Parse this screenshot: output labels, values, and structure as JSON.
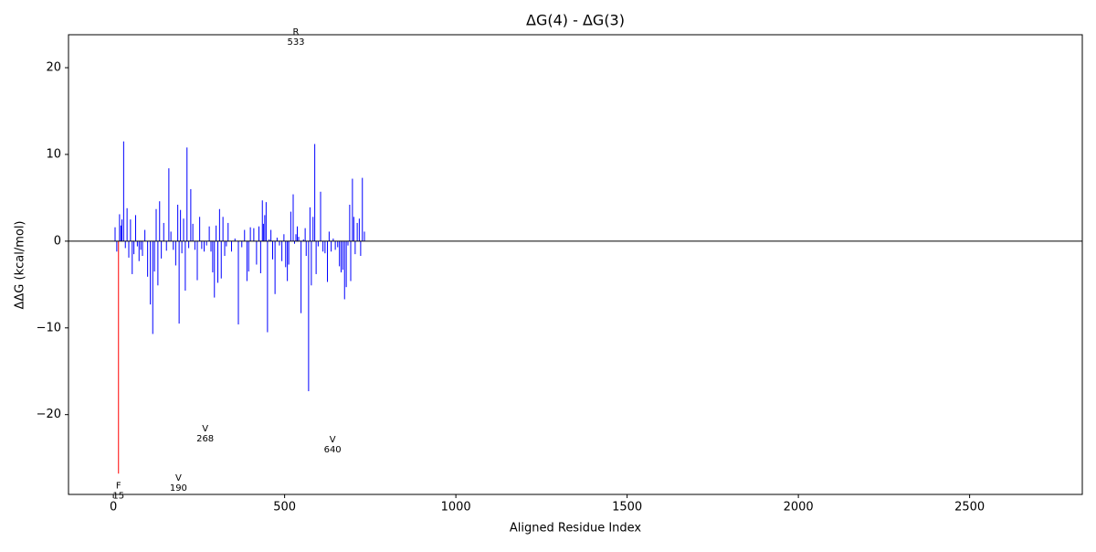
{
  "chart_data": {
    "type": "bar",
    "title": "ΔG(4) - ΔG(3)",
    "x_label": "Aligned Residue Index",
    "y_label": "ΔΔG (kcal/mol)",
    "color": "#0000ff",
    "zero_line": true,
    "x": [
      5,
      10,
      18,
      22,
      25,
      30,
      35,
      40,
      45,
      50,
      55,
      60,
      65,
      70,
      75,
      80,
      85,
      92,
      100,
      108,
      115,
      120,
      125,
      130,
      135,
      140,
      147,
      155,
      162,
      168,
      175,
      182,
      188,
      192,
      196,
      200,
      205,
      210,
      215,
      220,
      226,
      232,
      238,
      245,
      252,
      258,
      265,
      272,
      280,
      285,
      290,
      295,
      300,
      305,
      310,
      315,
      320,
      325,
      330,
      335,
      345,
      355,
      365,
      375,
      383,
      390,
      395,
      400,
      410,
      418,
      425,
      430,
      435,
      438,
      442,
      446,
      450,
      455,
      460,
      465,
      472,
      478,
      485,
      492,
      498,
      503,
      508,
      512,
      518,
      525,
      529,
      533,
      537,
      541,
      548,
      555,
      560,
      563,
      570,
      574,
      578,
      583,
      588,
      592,
      598,
      605,
      612,
      618,
      625,
      630,
      636,
      642,
      648,
      655,
      660,
      665,
      670,
      675,
      680,
      685,
      690,
      693,
      698,
      702,
      706,
      712,
      718,
      722,
      727,
      733
    ],
    "values": [
      1.6,
      -1.2,
      3.1,
      1.8,
      2.5,
      11.5,
      -0.8,
      3.8,
      -1.9,
      2.5,
      -3.8,
      -1.5,
      3.0,
      -0.6,
      -2.3,
      -1.0,
      -1.7,
      1.3,
      -4.1,
      -7.3,
      -10.7,
      -3.5,
      3.7,
      -5.1,
      4.6,
      -2.0,
      2.1,
      -1.1,
      8.4,
      1.1,
      -1.0,
      -2.8,
      4.2,
      -9.5,
      3.6,
      -1.4,
      2.6,
      -5.7,
      10.8,
      -0.8,
      6.0,
      2.0,
      -1.0,
      -4.5,
      2.8,
      -0.9,
      -1.2,
      -0.5,
      1.7,
      -1.2,
      -3.6,
      -6.5,
      1.8,
      -4.8,
      3.7,
      -4.3,
      2.8,
      -1.7,
      -0.6,
      2.1,
      -1.2,
      0.3,
      -9.6,
      -0.7,
      1.3,
      -4.6,
      -3.5,
      1.6,
      1.5,
      -2.7,
      1.7,
      -3.7,
      4.7,
      2.0,
      3.0,
      4.5,
      -10.5,
      0.2,
      1.3,
      -2.1,
      -6.1,
      0.4,
      -0.5,
      -2.3,
      0.8,
      -3.0,
      -4.6,
      -2.7,
      3.4,
      5.4,
      -0.3,
      0.8,
      1.7,
      0.5,
      -8.3,
      0.2,
      1.5,
      -1.7,
      -17.3,
      3.9,
      -5.1,
      2.8,
      11.2,
      -3.8,
      -0.6,
      5.7,
      -1.2,
      -1.4,
      -4.7,
      1.1,
      -1.2,
      0.3,
      -1.0,
      -0.7,
      -2.9,
      -3.6,
      -3.3,
      -6.7,
      -5.3,
      -0.5,
      4.2,
      -4.6,
      7.2,
      2.8,
      -1.5,
      2.1,
      2.6,
      -1.7,
      7.3,
      1.1
    ],
    "highlight": {
      "x": [
        15
      ],
      "values": [
        -26.8
      ],
      "color": "#ff0000"
    },
    "annotations": [
      {
        "text": "R",
        "x": 533,
        "y": 24.1
      },
      {
        "text": "F",
        "x": 15,
        "y": -28.2
      },
      {
        "text": "V",
        "x": 190,
        "y": -27.3
      },
      {
        "text": "V",
        "x": 268,
        "y": -21.6
      },
      {
        "text": "V",
        "x": 640,
        "y": -22.9
      }
    ],
    "xlim": [
      -131,
      2829
    ],
    "ylim": [
      -29.2,
      23.8
    ],
    "xticks": [
      0,
      500,
      1000,
      1500,
      2000,
      2500
    ],
    "yticks": [
      {
        "value": -20,
        "label": "−20"
      },
      {
        "value": -10,
        "label": "−10"
      },
      0,
      10,
      20
    ]
  }
}
